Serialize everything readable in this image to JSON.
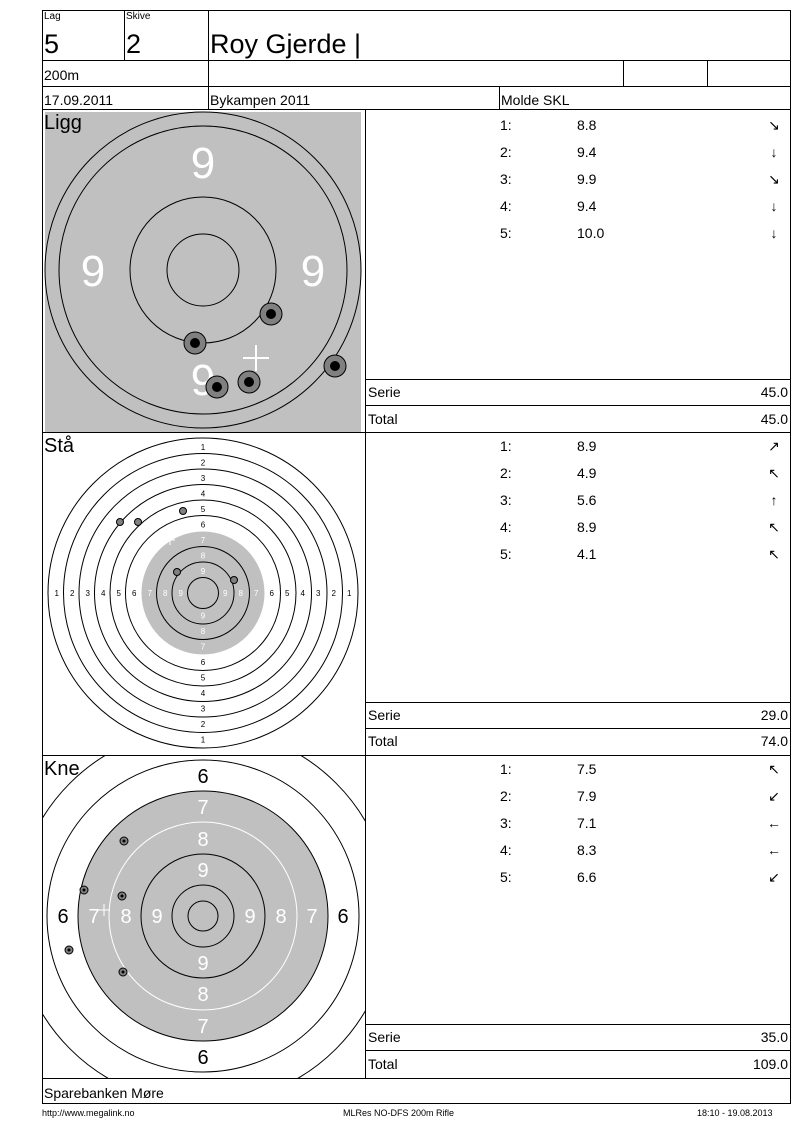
{
  "header": {
    "lag_label": "Lag",
    "lag_value": "5",
    "skive_label": "Skive",
    "skive_value": "2",
    "name": "Roy Gjerde |",
    "distance": "200m",
    "date": "17.09.2011",
    "event": "Bykampen 2011",
    "club": "Molde SKL"
  },
  "sections": [
    {
      "title": "Ligg",
      "shots": [
        {
          "num": "1:",
          "value": "8.8",
          "dir": "↘"
        },
        {
          "num": "2:",
          "value": "9.4",
          "dir": "↓"
        },
        {
          "num": "3:",
          "value": "9.9",
          "dir": "↘"
        },
        {
          "num": "4:",
          "value": "9.4",
          "dir": "↓"
        },
        {
          "num": "5:",
          "value": "10.0",
          "dir": "↓"
        }
      ],
      "serie_label": "Serie",
      "serie_value": "45.0",
      "total_label": "Total",
      "total_value": "45.0",
      "target_labels": {
        "top": "9",
        "left": "9",
        "right": "9",
        "bottom": "9"
      }
    },
    {
      "title": "Stå",
      "shots": [
        {
          "num": "1:",
          "value": "8.9",
          "dir": "↗"
        },
        {
          "num": "2:",
          "value": "4.9",
          "dir": "↖"
        },
        {
          "num": "3:",
          "value": "5.6",
          "dir": "↑"
        },
        {
          "num": "4:",
          "value": "8.9",
          "dir": "↖"
        },
        {
          "num": "5:",
          "value": "4.1",
          "dir": "↖"
        }
      ],
      "serie_label": "Serie",
      "serie_value": "29.0",
      "total_label": "Total",
      "total_value": "74.0",
      "ring_numbers": [
        "1",
        "2",
        "3",
        "4",
        "5",
        "6",
        "7",
        "8",
        "9"
      ]
    },
    {
      "title": "Kne",
      "shots": [
        {
          "num": "1:",
          "value": "7.5",
          "dir": "↖"
        },
        {
          "num": "2:",
          "value": "7.9",
          "dir": "↙"
        },
        {
          "num": "3:",
          "value": "7.1",
          "dir": "←"
        },
        {
          "num": "4:",
          "value": "8.3",
          "dir": "←"
        },
        {
          "num": "5:",
          "value": "6.6",
          "dir": "↙"
        }
      ],
      "serie_label": "Serie",
      "serie_value": "35.0",
      "total_label": "Total",
      "total_value": "109.0",
      "ring_numbers": [
        "6",
        "7",
        "8",
        "9"
      ]
    }
  ],
  "sponsor": "Sparebanken Møre",
  "footer": {
    "url": "http://www.megalink.no",
    "program": "MLRes NO-DFS 200m Rifle",
    "timestamp": "18:10 - 19.08.2013"
  },
  "colors": {
    "target_gray": "#c0c0c0",
    "shot_fill": "#808080"
  }
}
